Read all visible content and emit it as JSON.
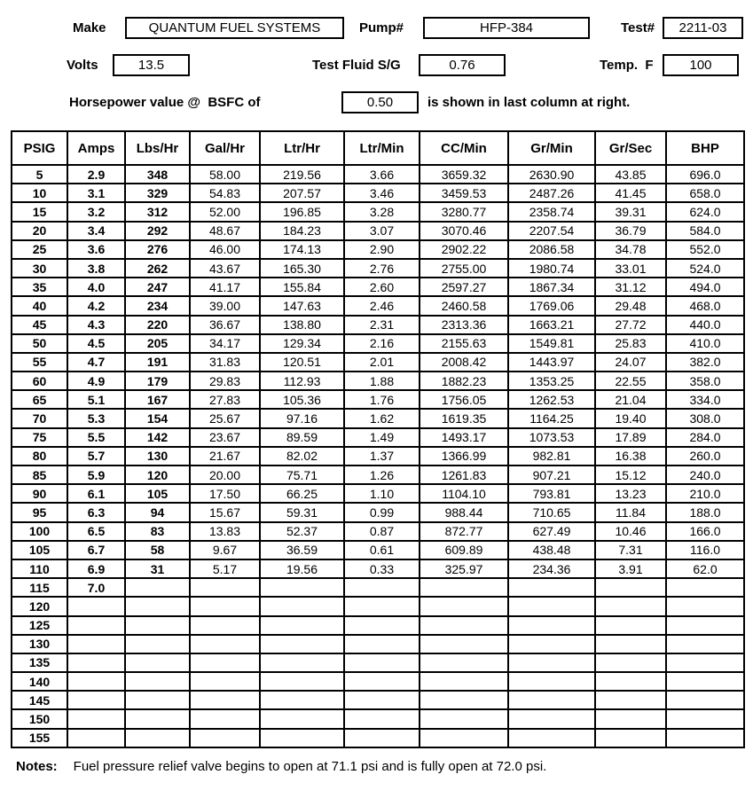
{
  "form": {
    "make": {
      "label": "Make",
      "value": "QUANTUM FUEL SYSTEMS"
    },
    "pump": {
      "label": "Pump#",
      "value": "HFP-384"
    },
    "test": {
      "label": "Test#",
      "value": "2211-03"
    },
    "volts": {
      "label": "Volts",
      "value": "13.5"
    },
    "fluid_sg": {
      "label": "Test Fluid S/G",
      "value": "0.76"
    },
    "temp": {
      "label": "Temp.  F",
      "value": "100"
    },
    "bsfc": {
      "prefix": "Horsepower value @  BSFC of",
      "value": "0.50",
      "suffix": "is shown in last column at right."
    }
  },
  "table": {
    "columns": [
      "PSIG",
      "Amps",
      "Lbs/Hr",
      "Gal/Hr",
      "Ltr/Hr",
      "Ltr/Min",
      "CC/Min",
      "Gr/Min",
      "Gr/Sec",
      "BHP"
    ],
    "rows": [
      [
        "5",
        "2.9",
        "348",
        "58.00",
        "219.56",
        "3.66",
        "3659.32",
        "2630.90",
        "43.85",
        "696.0"
      ],
      [
        "10",
        "3.1",
        "329",
        "54.83",
        "207.57",
        "3.46",
        "3459.53",
        "2487.26",
        "41.45",
        "658.0"
      ],
      [
        "15",
        "3.2",
        "312",
        "52.00",
        "196.85",
        "3.28",
        "3280.77",
        "2358.74",
        "39.31",
        "624.0"
      ],
      [
        "20",
        "3.4",
        "292",
        "48.67",
        "184.23",
        "3.07",
        "3070.46",
        "2207.54",
        "36.79",
        "584.0"
      ],
      [
        "25",
        "3.6",
        "276",
        "46.00",
        "174.13",
        "2.90",
        "2902.22",
        "2086.58",
        "34.78",
        "552.0"
      ],
      [
        "30",
        "3.8",
        "262",
        "43.67",
        "165.30",
        "2.76",
        "2755.00",
        "1980.74",
        "33.01",
        "524.0"
      ],
      [
        "35",
        "4.0",
        "247",
        "41.17",
        "155.84",
        "2.60",
        "2597.27",
        "1867.34",
        "31.12",
        "494.0"
      ],
      [
        "40",
        "4.2",
        "234",
        "39.00",
        "147.63",
        "2.46",
        "2460.58",
        "1769.06",
        "29.48",
        "468.0"
      ],
      [
        "45",
        "4.3",
        "220",
        "36.67",
        "138.80",
        "2.31",
        "2313.36",
        "1663.21",
        "27.72",
        "440.0"
      ],
      [
        "50",
        "4.5",
        "205",
        "34.17",
        "129.34",
        "2.16",
        "2155.63",
        "1549.81",
        "25.83",
        "410.0"
      ],
      [
        "55",
        "4.7",
        "191",
        "31.83",
        "120.51",
        "2.01",
        "2008.42",
        "1443.97",
        "24.07",
        "382.0"
      ],
      [
        "60",
        "4.9",
        "179",
        "29.83",
        "112.93",
        "1.88",
        "1882.23",
        "1353.25",
        "22.55",
        "358.0"
      ],
      [
        "65",
        "5.1",
        "167",
        "27.83",
        "105.36",
        "1.76",
        "1756.05",
        "1262.53",
        "21.04",
        "334.0"
      ],
      [
        "70",
        "5.3",
        "154",
        "25.67",
        "97.16",
        "1.62",
        "1619.35",
        "1164.25",
        "19.40",
        "308.0"
      ],
      [
        "75",
        "5.5",
        "142",
        "23.67",
        "89.59",
        "1.49",
        "1493.17",
        "1073.53",
        "17.89",
        "284.0"
      ],
      [
        "80",
        "5.7",
        "130",
        "21.67",
        "82.02",
        "1.37",
        "1366.99",
        "982.81",
        "16.38",
        "260.0"
      ],
      [
        "85",
        "5.9",
        "120",
        "20.00",
        "75.71",
        "1.26",
        "1261.83",
        "907.21",
        "15.12",
        "240.0"
      ],
      [
        "90",
        "6.1",
        "105",
        "17.50",
        "66.25",
        "1.10",
        "1104.10",
        "793.81",
        "13.23",
        "210.0"
      ],
      [
        "95",
        "6.3",
        "94",
        "15.67",
        "59.31",
        "0.99",
        "988.44",
        "710.65",
        "11.84",
        "188.0"
      ],
      [
        "100",
        "6.5",
        "83",
        "13.83",
        "52.37",
        "0.87",
        "872.77",
        "627.49",
        "10.46",
        "166.0"
      ],
      [
        "105",
        "6.7",
        "58",
        "9.67",
        "36.59",
        "0.61",
        "609.89",
        "438.48",
        "7.31",
        "116.0"
      ],
      [
        "110",
        "6.9",
        "31",
        "5.17",
        "19.56",
        "0.33",
        "325.97",
        "234.36",
        "3.91",
        "62.0"
      ],
      [
        "115",
        "7.0",
        "",
        "",
        "",
        "",
        "",
        "",
        "",
        ""
      ],
      [
        "120",
        "",
        "",
        "",
        "",
        "",
        "",
        "",
        "",
        ""
      ],
      [
        "125",
        "",
        "",
        "",
        "",
        "",
        "",
        "",
        "",
        ""
      ],
      [
        "130",
        "",
        "",
        "",
        "",
        "",
        "",
        "",
        "",
        ""
      ],
      [
        "135",
        "",
        "",
        "",
        "",
        "",
        "",
        "",
        "",
        ""
      ],
      [
        "140",
        "",
        "",
        "",
        "",
        "",
        "",
        "",
        "",
        ""
      ],
      [
        "145",
        "",
        "",
        "",
        "",
        "",
        "",
        "",
        "",
        ""
      ],
      [
        "150",
        "",
        "",
        "",
        "",
        "",
        "",
        "",
        "",
        ""
      ],
      [
        "155",
        "",
        "",
        "",
        "",
        "",
        "",
        "",
        "",
        ""
      ]
    ]
  },
  "notes": {
    "label": "Notes:",
    "text": "Fuel pressure relief valve begins to open at 71.1 psi and is fully open at 72.0 psi."
  }
}
